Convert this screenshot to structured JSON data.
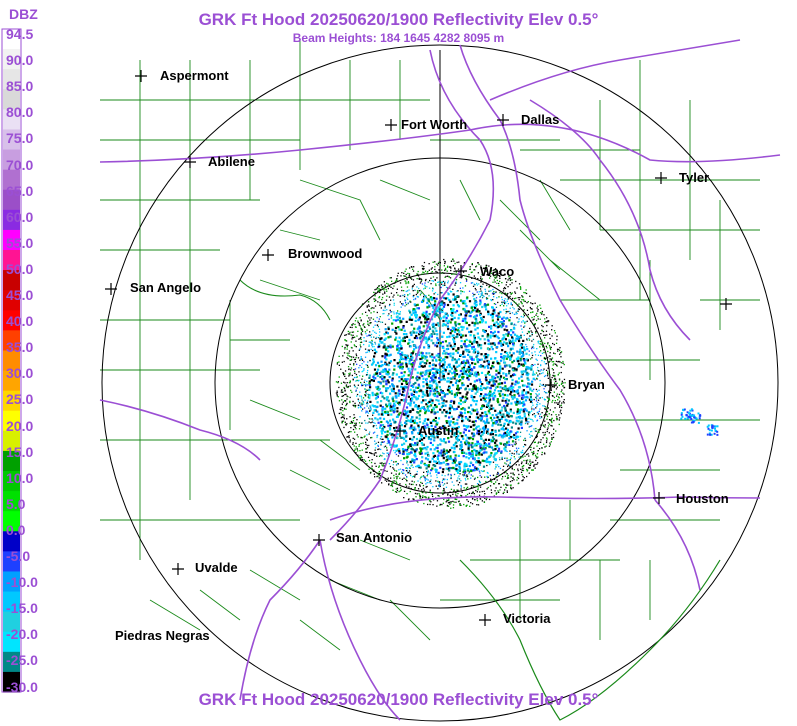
{
  "title": "GRK Ft Hood 20250620/1900 Reflectivity Elev 0.5°",
  "subtitle": "Beam Heights: 184 1645 4282 8095 m",
  "legend": {
    "unit": "DBZ",
    "values": [
      "94.5",
      "90.0",
      "85.0",
      "80.0",
      "75.0",
      "70.0",
      "65.0",
      "60.0",
      "55.0",
      "50.0",
      "45.0",
      "40.0",
      "35.0",
      "30.0",
      "25.0",
      "20.0",
      "15.0",
      "10.0",
      "5.0",
      "0.0",
      "-5.0",
      "-10.0",
      "-15.0",
      "-20.0",
      "-25.0",
      "-30.0"
    ],
    "colors": [
      "#ffffff",
      "#f2f2f2",
      "#e6e6e6",
      "#d9d9d9",
      "#eae0f4",
      "#d8c0ea",
      "#c89ee0",
      "#b070d0",
      "#9b4fc8",
      "#8a2be2",
      "#ff00ff",
      "#ff1493",
      "#c80000",
      "#e00000",
      "#ff0000",
      "#ff4000",
      "#ff8c00",
      "#ffa500",
      "#ffd700",
      "#ffff00",
      "#d8f000",
      "#00a000",
      "#00c800",
      "#00e000",
      "#00ff00",
      "#0000c8",
      "#1e40ff",
      "#00a0ff",
      "#00c8ff",
      "#20d0e0",
      "#00e5ff",
      "#008888",
      "#000000"
    ]
  },
  "cities": [
    {
      "name": "Aspermont",
      "id": "aspermont"
    },
    {
      "name": "Fort Worth",
      "id": "fort-worth"
    },
    {
      "name": "Dallas",
      "id": "dallas"
    },
    {
      "name": "Abilene",
      "id": "abilene"
    },
    {
      "name": "Tyler",
      "id": "tyler"
    },
    {
      "name": "Brownwood",
      "id": "brownwood"
    },
    {
      "name": "Waco",
      "id": "waco"
    },
    {
      "name": "San Angelo",
      "id": "san-angelo"
    },
    {
      "name": "Bryan",
      "id": "bryan"
    },
    {
      "name": "Austin",
      "id": "austin"
    },
    {
      "name": "Houston",
      "id": "houston"
    },
    {
      "name": "San Antonio",
      "id": "san-antonio"
    },
    {
      "name": "Uvalde",
      "id": "uvalde"
    },
    {
      "name": "Victoria",
      "id": "victoria"
    },
    {
      "name": "Piedras Negras",
      "id": "piedras-negras"
    }
  ],
  "colors": {
    "title": "#9b4fd4",
    "counties": "#1a8a1a",
    "highways": "#9b4fd4",
    "range_rings": "#000000"
  }
}
